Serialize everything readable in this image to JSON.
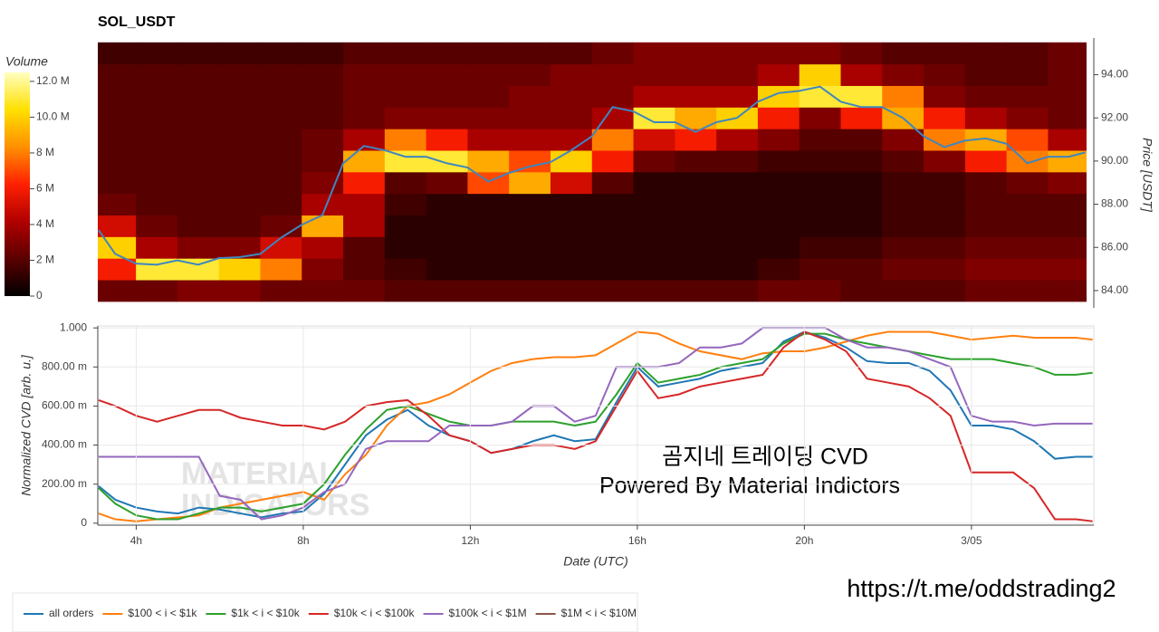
{
  "chart_data": [
    {
      "type": "heatmap",
      "title": "SOL_USDT",
      "colorbar_label": "Volume",
      "y2label": "Price [USDT]",
      "xlim": [
        3.08,
        26.93
      ],
      "ylim": [
        83.2,
        95.7
      ],
      "y2ticks": [
        {
          "value": 84,
          "label": "84.00"
        },
        {
          "value": 86,
          "label": "86.00"
        },
        {
          "value": 88,
          "label": "88.00"
        },
        {
          "value": 90,
          "label": "90.00"
        },
        {
          "value": 92,
          "label": "92.00"
        },
        {
          "value": 94,
          "label": "94.00"
        }
      ],
      "zlim": [
        0,
        12.5
      ],
      "zticks": [
        0,
        {
          "value": 2,
          "label": "2 M"
        },
        {
          "value": 4,
          "label": "4 M"
        },
        {
          "value": 6,
          "label": "6 M"
        },
        {
          "value": 8,
          "label": "8 M"
        },
        {
          "value": 10,
          "label": "10.0 M"
        },
        {
          "value": 12,
          "label": "12.0 M"
        }
      ],
      "colormap": [
        "#000000",
        "#5a0000",
        "#b00000",
        "#ff2000",
        "#ff9000",
        "#ffe000",
        "#ffffc0"
      ],
      "columns": [
        3.5,
        4.5,
        5.5,
        6.5,
        7.5,
        8.5,
        9.5,
        10.5,
        11.5,
        12.5,
        13.5,
        14.5,
        15.5,
        16.5,
        17.5,
        18.5,
        19.5,
        20.5,
        21.5,
        22.5,
        23.5,
        24.5,
        25.5,
        26.5
      ],
      "rows": [
        84,
        85,
        86,
        87,
        88,
        89,
        90,
        91,
        92,
        93,
        94,
        95
      ],
      "z": [
        [
          2.5,
          2.5,
          3,
          3,
          2.5,
          2.5,
          2.5,
          2,
          2,
          2,
          2,
          2,
          2,
          2,
          2,
          2,
          2.5,
          2.5,
          2,
          2,
          2,
          2.5,
          2.5,
          2.5
        ],
        [
          6,
          11,
          11,
          10,
          8,
          3,
          2,
          1.5,
          1,
          1,
          1,
          1,
          1,
          1,
          1,
          1,
          1.5,
          2,
          2,
          2.5,
          2.5,
          3,
          3,
          3
        ],
        [
          10,
          4,
          3,
          3,
          5,
          4,
          2,
          1,
          1,
          1,
          1,
          1,
          1,
          1,
          1,
          1,
          1,
          1.5,
          1.5,
          2,
          2,
          2.5,
          2.5,
          2.5
        ],
        [
          5,
          2.5,
          2,
          2,
          2.5,
          9,
          4,
          1,
          1,
          1,
          1,
          1,
          1,
          1,
          1,
          1,
          1,
          1,
          1,
          1.5,
          1.5,
          2,
          2,
          2
        ],
        [
          2.5,
          2,
          2,
          2,
          2,
          4,
          4,
          1.5,
          1,
          1,
          1,
          1,
          1,
          1,
          1,
          1,
          1,
          1,
          1,
          1.5,
          1.5,
          2,
          2,
          2
        ],
        [
          2,
          2,
          2,
          2,
          2,
          3,
          6,
          2,
          2.5,
          7,
          9,
          5,
          2,
          1,
          1,
          1,
          1,
          1,
          1,
          1.5,
          1.5,
          2,
          2.5,
          3
        ],
        [
          2,
          2,
          2,
          2,
          2,
          2.5,
          9,
          11,
          11,
          9,
          7,
          10,
          6,
          2.5,
          2,
          2,
          1.5,
          1.5,
          1.5,
          2,
          3,
          6,
          8,
          9
        ],
        [
          2,
          2,
          2,
          2,
          2,
          2.5,
          4,
          8,
          6,
          4,
          4,
          4,
          8,
          5,
          6,
          4,
          3,
          2,
          2,
          3,
          8,
          9,
          7,
          4
        ],
        [
          2,
          2,
          2,
          2,
          2,
          2,
          2.5,
          3,
          3,
          3,
          3,
          3,
          4,
          11,
          9,
          10,
          6,
          3,
          6,
          9,
          6,
          4,
          3,
          2.5
        ],
        [
          2,
          2,
          2,
          2,
          2,
          2,
          2.5,
          2.5,
          2.5,
          2.5,
          3,
          3,
          3,
          4,
          4,
          4,
          10,
          11,
          11,
          8,
          3,
          2.5,
          2.5,
          2.5
        ],
        [
          2,
          2,
          2,
          2,
          2,
          2,
          2.5,
          2.5,
          2.5,
          2.5,
          2.5,
          3,
          3,
          3,
          3,
          3,
          4,
          10,
          4,
          3,
          2.5,
          2,
          2,
          2.5
        ],
        [
          1.5,
          1.5,
          1.5,
          1.5,
          1.5,
          1.5,
          2,
          2,
          2,
          2,
          2,
          2,
          2.5,
          3,
          3,
          3,
          3,
          3,
          2.5,
          2,
          2,
          2,
          2,
          2.5
        ]
      ],
      "price": {
        "color": "#3f86c0",
        "x": [
          3.1,
          3.5,
          4,
          4.5,
          5,
          5.5,
          6,
          6.5,
          7,
          7.5,
          8,
          8.5,
          9,
          9.5,
          10,
          10.5,
          11,
          11.5,
          12,
          12.5,
          13,
          13.5,
          14,
          14.5,
          15,
          15.5,
          16,
          16.5,
          17,
          17.5,
          18,
          18.5,
          19,
          19.5,
          20,
          20.5,
          21,
          21.5,
          22,
          22.5,
          23,
          23.5,
          24,
          24.5,
          25,
          25.5,
          26,
          26.5,
          26.9
        ],
        "values": [
          86.8,
          85.7,
          85.25,
          85.2,
          85.4,
          85.2,
          85.5,
          85.55,
          85.7,
          86.45,
          87.05,
          87.5,
          89.9,
          90.7,
          90.5,
          90.2,
          90.2,
          89.9,
          89.7,
          89.05,
          89.45,
          89.75,
          89.95,
          90.5,
          91.15,
          92.5,
          92.3,
          91.8,
          91.8,
          91.35,
          91.8,
          92.0,
          92.75,
          93.15,
          93.25,
          93.45,
          92.75,
          92.5,
          92.5,
          92.0,
          91.15,
          90.65,
          90.95,
          91.05,
          90.8,
          89.9,
          90.2,
          90.2,
          90.4
        ]
      }
    },
    {
      "type": "line",
      "ylabel": "Normalized CVD [arb. u.]",
      "xlabel": "Date (UTC)",
      "grid": true,
      "xlim": [
        3.08,
        26.93
      ],
      "ylim": [
        -0.01,
        1.01
      ],
      "xticks": [
        {
          "value": 4,
          "label": "4h"
        },
        {
          "value": 8,
          "label": "8h"
        },
        {
          "value": 12,
          "label": "12h"
        },
        {
          "value": 16,
          "label": "16h"
        },
        {
          "value": 20,
          "label": "20h"
        },
        {
          "value": 24,
          "label": "3/05"
        }
      ],
      "yticks": [
        0,
        {
          "value": 0.2,
          "label": "200.00 m"
        },
        {
          "value": 0.4,
          "label": "400.00 m"
        },
        {
          "value": 0.6,
          "label": "600.00 m"
        },
        {
          "value": 0.8,
          "label": "800.00 m"
        },
        {
          "value": 1,
          "label": "1.000"
        }
      ],
      "watermark": [
        "MATERIAL",
        "INDICATORS"
      ],
      "annotations": [
        "곰지네 트레이딩 CVD",
        "Powered By Material Indictors"
      ],
      "x": [
        3.1,
        3.5,
        4,
        4.5,
        5,
        5.5,
        6,
        6.5,
        7,
        7.5,
        8,
        8.5,
        9,
        9.5,
        10,
        10.5,
        11,
        11.5,
        12,
        12.5,
        13,
        13.5,
        14,
        14.5,
        15,
        15.5,
        16,
        16.5,
        17,
        17.5,
        18,
        18.5,
        19,
        19.5,
        20,
        20.5,
        21,
        21.5,
        22,
        22.5,
        23,
        23.5,
        24,
        24.5,
        25,
        25.5,
        26,
        26.5,
        26.9
      ],
      "series": [
        {
          "name": "all orders",
          "color": "#1f77b4",
          "values": [
            0.19,
            0.12,
            0.08,
            0.06,
            0.05,
            0.08,
            0.07,
            0.05,
            0.03,
            0.05,
            0.06,
            0.15,
            0.3,
            0.45,
            0.53,
            0.58,
            0.5,
            0.45,
            0.42,
            0.36,
            0.38,
            0.42,
            0.45,
            0.42,
            0.43,
            0.62,
            0.8,
            0.7,
            0.72,
            0.74,
            0.78,
            0.8,
            0.82,
            0.93,
            0.98,
            0.95,
            0.9,
            0.83,
            0.82,
            0.82,
            0.78,
            0.68,
            0.5,
            0.5,
            0.48,
            0.42,
            0.33,
            0.34,
            0.34
          ]
        },
        {
          "name": "$100 < i < $1k",
          "color": "#ff7f0e",
          "values": [
            0.05,
            0.02,
            0.01,
            0.02,
            0.03,
            0.04,
            0.08,
            0.1,
            0.12,
            0.14,
            0.16,
            0.12,
            0.25,
            0.35,
            0.5,
            0.6,
            0.62,
            0.66,
            0.72,
            0.78,
            0.82,
            0.84,
            0.85,
            0.85,
            0.86,
            0.92,
            0.98,
            0.97,
            0.92,
            0.88,
            0.86,
            0.84,
            0.87,
            0.88,
            0.88,
            0.9,
            0.93,
            0.96,
            0.98,
            0.98,
            0.98,
            0.96,
            0.94,
            0.95,
            0.96,
            0.95,
            0.95,
            0.95,
            0.94
          ]
        },
        {
          "name": "$1k < i < $10k",
          "color": "#2ca02c",
          "values": [
            0.18,
            0.1,
            0.04,
            0.02,
            0.02,
            0.05,
            0.08,
            0.08,
            0.06,
            0.08,
            0.1,
            0.2,
            0.35,
            0.48,
            0.58,
            0.6,
            0.56,
            0.52,
            0.5,
            0.5,
            0.52,
            0.52,
            0.52,
            0.5,
            0.52,
            0.66,
            0.82,
            0.72,
            0.74,
            0.76,
            0.8,
            0.82,
            0.84,
            0.92,
            0.97,
            0.97,
            0.94,
            0.92,
            0.9,
            0.88,
            0.86,
            0.84,
            0.84,
            0.84,
            0.82,
            0.8,
            0.76,
            0.76,
            0.77
          ]
        },
        {
          "name": "$10k < i < $100k",
          "color": "#d62728",
          "values": [
            0.63,
            0.6,
            0.55,
            0.52,
            0.55,
            0.58,
            0.58,
            0.54,
            0.52,
            0.5,
            0.5,
            0.48,
            0.52,
            0.6,
            0.62,
            0.63,
            0.55,
            0.45,
            0.42,
            0.36,
            0.38,
            0.4,
            0.4,
            0.38,
            0.42,
            0.6,
            0.78,
            0.64,
            0.66,
            0.7,
            0.72,
            0.74,
            0.76,
            0.9,
            0.98,
            0.94,
            0.88,
            0.74,
            0.72,
            0.7,
            0.64,
            0.55,
            0.26,
            0.26,
            0.26,
            0.18,
            0.02,
            0.02,
            0.01
          ]
        },
        {
          "name": "$100k < i < $1M",
          "color": "#9467bd",
          "values": [
            0.34,
            0.34,
            0.34,
            0.34,
            0.34,
            0.34,
            0.14,
            0.12,
            0.02,
            0.04,
            0.08,
            0.16,
            0.2,
            0.38,
            0.42,
            0.42,
            0.42,
            0.5,
            0.5,
            0.5,
            0.52,
            0.6,
            0.6,
            0.52,
            0.55,
            0.8,
            0.8,
            0.8,
            0.82,
            0.9,
            0.9,
            0.92,
            1.0,
            1.0,
            1.0,
            1.0,
            0.94,
            0.9,
            0.9,
            0.88,
            0.84,
            0.8,
            0.55,
            0.52,
            0.52,
            0.5,
            0.51,
            0.51,
            0.51
          ]
        },
        {
          "name": "$1M < i < $10M",
          "color": "#8c564b",
          "values": [
            null,
            null,
            null,
            null,
            null,
            null,
            null,
            null,
            null,
            null,
            null,
            null,
            null,
            null,
            null,
            null,
            null,
            null,
            null,
            null,
            null,
            null,
            null,
            null,
            null,
            null,
            null,
            null,
            null,
            null,
            null,
            null,
            null,
            null,
            null,
            null,
            null,
            null,
            null,
            null,
            null,
            null,
            null,
            null,
            null,
            null,
            null,
            null,
            null
          ]
        }
      ]
    }
  ],
  "footer_link": "https://t.me/oddstrading2"
}
